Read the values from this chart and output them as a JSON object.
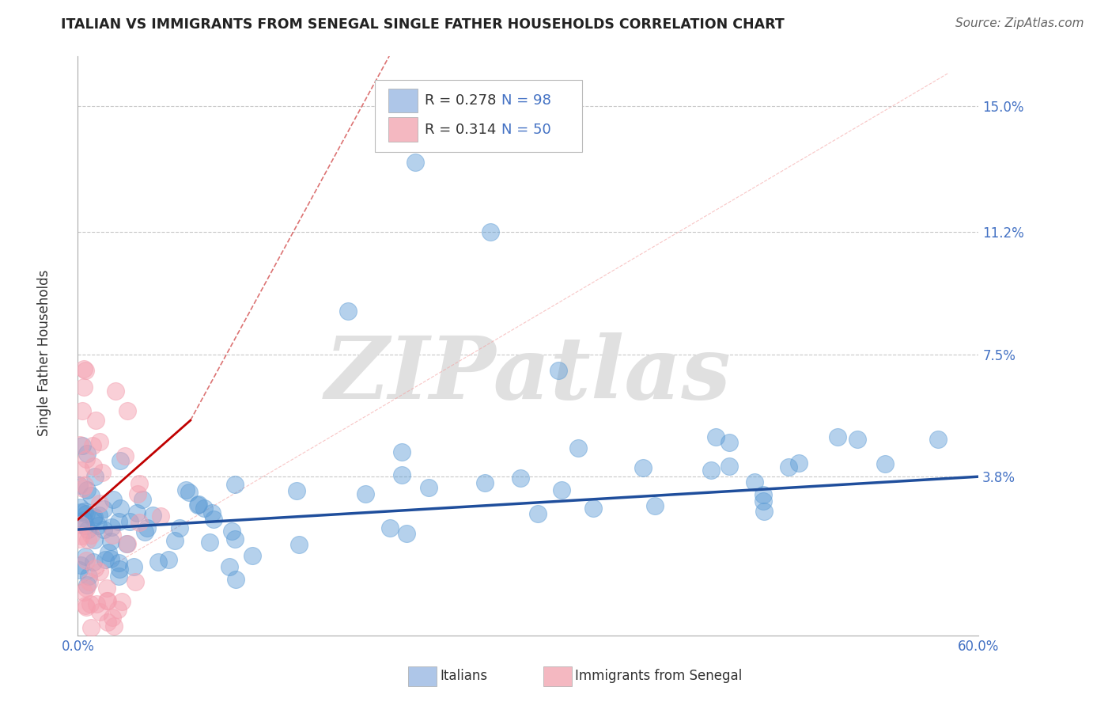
{
  "title": "ITALIAN VS IMMIGRANTS FROM SENEGAL SINGLE FATHER HOUSEHOLDS CORRELATION CHART",
  "source": "Source: ZipAtlas.com",
  "ylabel": "Single Father Households",
  "xlim": [
    0.0,
    0.6
  ],
  "ylim": [
    -0.01,
    0.165
  ],
  "yticks": [
    0.038,
    0.075,
    0.112,
    0.15
  ],
  "ytick_labels": [
    "3.8%",
    "7.5%",
    "11.2%",
    "15.0%"
  ],
  "xticks": [
    0.0,
    0.15,
    0.3,
    0.45,
    0.6
  ],
  "xtick_labels": [
    "0.0%",
    "",
    "",
    "",
    "60.0%"
  ],
  "grid_color": "#c8c8c8",
  "background_color": "#ffffff",
  "title_color": "#222222",
  "axis_color": "#4472c4",
  "text_color_dark": "#333333",
  "legend_R1": "R = 0.278",
  "legend_N1": "N = 98",
  "legend_R2": "R = 0.314",
  "legend_N2": "N = 50",
  "legend_color_blue": "#aec6e8",
  "legend_color_pink": "#f4b8c1",
  "series1_color": "#5b9bd5",
  "series2_color": "#f4a0b0",
  "regression1_color": "#1f4e9c",
  "regression2_color": "#c00000",
  "diag_color": "#f4a0a0",
  "watermark_text": "ZIPatlas",
  "watermark_color": "#e0e0e0"
}
